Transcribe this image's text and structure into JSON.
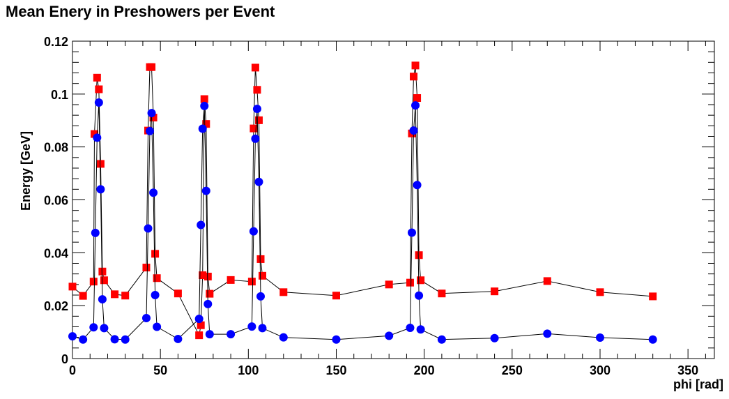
{
  "chart_data": {
    "type": "scatter",
    "title": "Mean Enery in Preshowers per Event",
    "xlabel": "phi [rad]",
    "ylabel": "Energy [GeV]",
    "xlim": [
      0,
      365
    ],
    "ylim": [
      0,
      0.12
    ],
    "x_ticks": [
      0,
      50,
      100,
      150,
      200,
      250,
      300,
      350
    ],
    "y_ticks": [
      0,
      0.02,
      0.04,
      0.06,
      0.08,
      0.1,
      0.12
    ],
    "y_tick_labels": [
      "0",
      "0.02",
      "0.04",
      "0.06",
      "0.08",
      "0.1",
      "0.12"
    ],
    "grid": false,
    "series": [
      {
        "marker": "square",
        "color": "#ff0000",
        "line_color": "#000000",
        "points": [
          [
            0,
            0.0272
          ],
          [
            6,
            0.0237
          ],
          [
            12,
            0.0291
          ],
          [
            12.5,
            0.0849
          ],
          [
            14,
            0.1062
          ],
          [
            15,
            0.1018
          ],
          [
            16,
            0.0736
          ],
          [
            17,
            0.0329
          ],
          [
            18,
            0.0296
          ],
          [
            24,
            0.0243
          ],
          [
            30,
            0.0238
          ],
          [
            42,
            0.0344
          ],
          [
            43,
            0.0862
          ],
          [
            44,
            0.1102
          ],
          [
            45,
            0.1102
          ],
          [
            46,
            0.0911
          ],
          [
            47,
            0.0396
          ],
          [
            48,
            0.0304
          ],
          [
            60,
            0.0246
          ],
          [
            72,
            0.0088
          ],
          [
            73,
            0.0126
          ],
          [
            74,
            0.0315
          ],
          [
            75,
            0.0981
          ],
          [
            76,
            0.0887
          ],
          [
            77,
            0.031
          ],
          [
            78,
            0.0245
          ],
          [
            90,
            0.0297
          ],
          [
            102,
            0.0291
          ],
          [
            103,
            0.087
          ],
          [
            104,
            0.11
          ],
          [
            105,
            0.1016
          ],
          [
            106,
            0.0901
          ],
          [
            107,
            0.0376
          ],
          [
            108,
            0.0313
          ],
          [
            120,
            0.0251
          ],
          [
            150,
            0.0238
          ],
          [
            180,
            0.028
          ],
          [
            192,
            0.0287
          ],
          [
            193,
            0.0851
          ],
          [
            194,
            0.1066
          ],
          [
            195,
            0.1108
          ],
          [
            196,
            0.0985
          ],
          [
            197,
            0.0391
          ],
          [
            198,
            0.0296
          ],
          [
            210,
            0.0246
          ],
          [
            240,
            0.0254
          ],
          [
            270,
            0.0293
          ],
          [
            300,
            0.0251
          ],
          [
            330,
            0.0235
          ]
        ]
      },
      {
        "marker": "circle",
        "color": "#0000ff",
        "line_color": "#000000",
        "points": [
          [
            0,
            0.0084
          ],
          [
            6,
            0.0072
          ],
          [
            12,
            0.0118
          ],
          [
            13,
            0.0475
          ],
          [
            14,
            0.0835
          ],
          [
            15,
            0.0968
          ],
          [
            16,
            0.064
          ],
          [
            17,
            0.0224
          ],
          [
            18,
            0.0115
          ],
          [
            24,
            0.0073
          ],
          [
            30,
            0.0072
          ],
          [
            42,
            0.0153
          ],
          [
            43,
            0.0492
          ],
          [
            44,
            0.086
          ],
          [
            45,
            0.0928
          ],
          [
            46,
            0.0627
          ],
          [
            47,
            0.024
          ],
          [
            48,
            0.012
          ],
          [
            60,
            0.0074
          ],
          [
            72,
            0.015
          ],
          [
            73,
            0.0505
          ],
          [
            74,
            0.0869
          ],
          [
            75,
            0.0955
          ],
          [
            76,
            0.0634
          ],
          [
            77,
            0.0206
          ],
          [
            78,
            0.0092
          ],
          [
            90,
            0.0092
          ],
          [
            102,
            0.0121
          ],
          [
            103,
            0.0481
          ],
          [
            104,
            0.0831
          ],
          [
            105,
            0.0944
          ],
          [
            106,
            0.0668
          ],
          [
            107,
            0.0235
          ],
          [
            108,
            0.0115
          ],
          [
            120,
            0.008
          ],
          [
            150,
            0.0072
          ],
          [
            180,
            0.0086
          ],
          [
            192,
            0.0116
          ],
          [
            193,
            0.0476
          ],
          [
            194,
            0.0862
          ],
          [
            195,
            0.0957
          ],
          [
            196,
            0.0656
          ],
          [
            197,
            0.0238
          ],
          [
            198,
            0.011
          ],
          [
            210,
            0.0072
          ],
          [
            240,
            0.0077
          ],
          [
            270,
            0.0094
          ],
          [
            300,
            0.0079
          ],
          [
            330,
            0.0072
          ]
        ]
      }
    ]
  }
}
